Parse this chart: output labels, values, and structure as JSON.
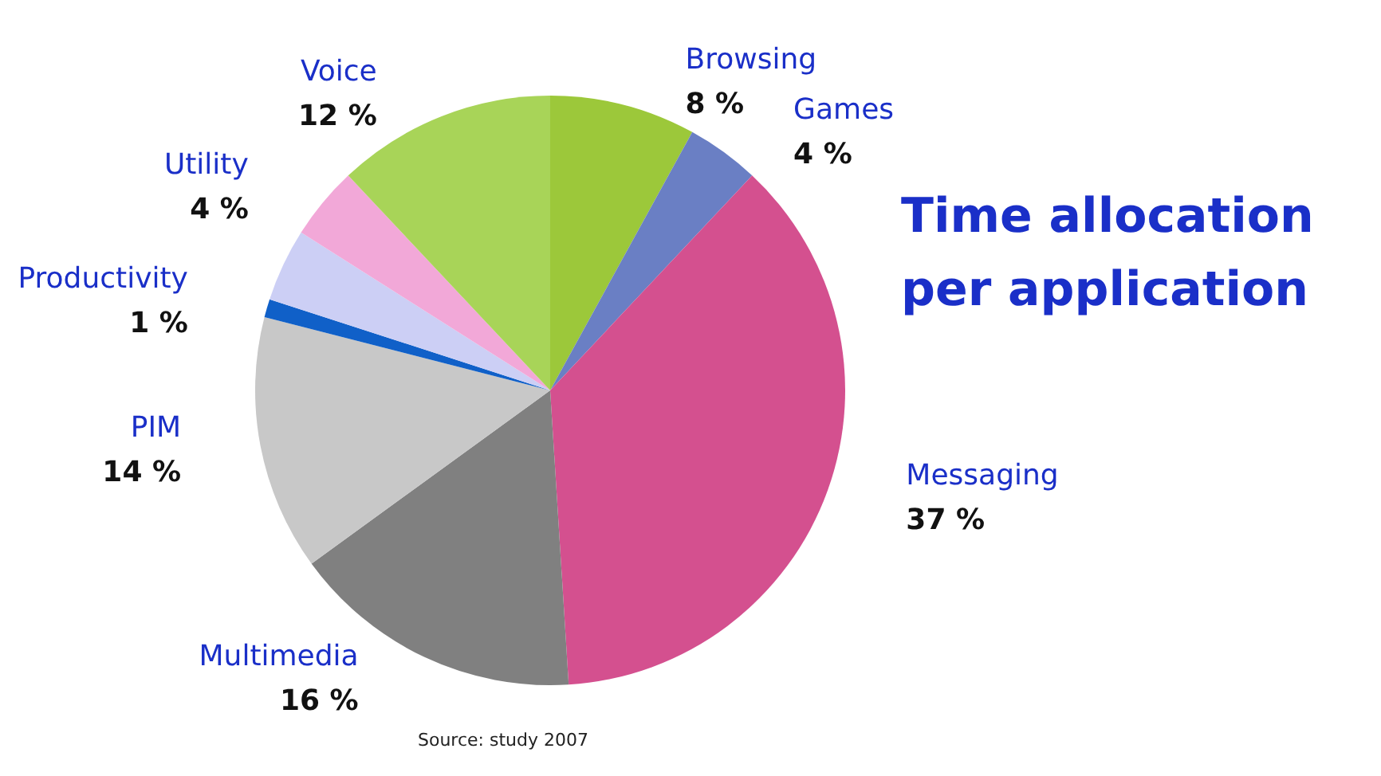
{
  "chart_data": {
    "type": "pie",
    "title": "Time allocation per application",
    "categories": [
      "Browsing",
      "Games",
      "Messaging",
      "Multimedia",
      "PIM",
      "Productivity",
      null,
      "Utility",
      "Voice"
    ],
    "values": [
      8,
      4,
      37,
      16,
      14,
      1,
      4,
      4,
      12
    ],
    "value_labels": [
      "8 %",
      "4 %",
      "37 %",
      "16 %",
      "14 %",
      "1 %",
      null,
      "4 %",
      "12 %"
    ],
    "colors": [
      "#9cc83a",
      "#6a7fc4",
      "#d4508f",
      "#808080",
      "#c8c8c8",
      "#1060c8",
      "#cccff5",
      "#f2a8d8",
      "#a8d458"
    ],
    "legend": false,
    "annotations": [
      "Source: study 2007"
    ]
  }
}
